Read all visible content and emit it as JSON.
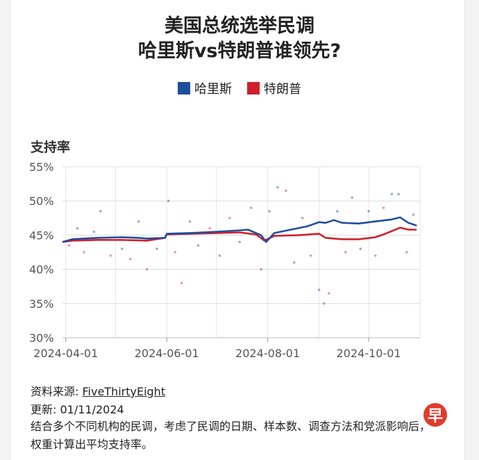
{
  "chart_data": {
    "type": "line",
    "title": "美国总统选举民调",
    "subtitle": "哈里斯vs特朗普谁领先?",
    "ylabel": "支持率",
    "xlabel": "",
    "ylim": [
      30,
      55
    ],
    "y_ticks": [
      "30%",
      "35%",
      "40%",
      "45%",
      "50%",
      "55%"
    ],
    "x_ticks": [
      "2024-04-01",
      "2024-06-01",
      "2024-08-01",
      "2024-10-01"
    ],
    "xlim": [
      "2024-03-30",
      "2024-11-01"
    ],
    "grid": true,
    "legend_position": "top-center",
    "series": [
      {
        "name": "哈里斯",
        "color": "#1f4e9c",
        "points": [
          [
            "2024-03-30",
            44.0
          ],
          [
            "2024-04-05",
            44.4
          ],
          [
            "2024-04-20",
            44.6
          ],
          [
            "2024-05-05",
            44.7
          ],
          [
            "2024-05-15",
            44.6
          ],
          [
            "2024-05-20",
            44.5
          ],
          [
            "2024-05-31",
            44.6
          ],
          [
            "2024-06-01",
            45.2
          ],
          [
            "2024-06-15",
            45.3
          ],
          [
            "2024-07-01",
            45.5
          ],
          [
            "2024-07-15",
            45.7
          ],
          [
            "2024-07-20",
            45.8
          ],
          [
            "2024-07-25",
            45.3
          ],
          [
            "2024-07-28",
            45.0
          ],
          [
            "2024-07-31",
            44.0
          ],
          [
            "2024-08-05",
            45.3
          ],
          [
            "2024-08-15",
            45.8
          ],
          [
            "2024-08-25",
            46.3
          ],
          [
            "2024-09-01",
            46.9
          ],
          [
            "2024-09-05",
            46.8
          ],
          [
            "2024-09-10",
            47.2
          ],
          [
            "2024-09-15",
            46.8
          ],
          [
            "2024-09-25",
            46.7
          ],
          [
            "2024-10-05",
            47.0
          ],
          [
            "2024-10-15",
            47.3
          ],
          [
            "2024-10-20",
            47.6
          ],
          [
            "2024-10-25",
            46.8
          ],
          [
            "2024-10-30",
            46.4
          ]
        ]
      },
      {
        "name": "特朗普",
        "color": "#d0202d",
        "points": [
          [
            "2024-03-30",
            44.0
          ],
          [
            "2024-04-05",
            44.2
          ],
          [
            "2024-04-20",
            44.3
          ],
          [
            "2024-05-05",
            44.3
          ],
          [
            "2024-05-20",
            44.2
          ],
          [
            "2024-05-31",
            44.6
          ],
          [
            "2024-06-01",
            45.1
          ],
          [
            "2024-06-15",
            45.2
          ],
          [
            "2024-07-01",
            45.3
          ],
          [
            "2024-07-15",
            45.4
          ],
          [
            "2024-07-25",
            45.1
          ],
          [
            "2024-07-30",
            44.2
          ],
          [
            "2024-08-05",
            44.9
          ],
          [
            "2024-08-20",
            45.0
          ],
          [
            "2024-09-01",
            45.2
          ],
          [
            "2024-09-05",
            44.6
          ],
          [
            "2024-09-15",
            44.4
          ],
          [
            "2024-09-25",
            44.4
          ],
          [
            "2024-10-05",
            44.7
          ],
          [
            "2024-10-10",
            45.1
          ],
          [
            "2024-10-15",
            45.6
          ],
          [
            "2024-10-20",
            46.1
          ],
          [
            "2024-10-25",
            45.8
          ],
          [
            "2024-10-30",
            45.8
          ]
        ]
      }
    ],
    "scatter_polls": [
      [
        "2024-04-03",
        43.5,
        "r"
      ],
      [
        "2024-04-08",
        46.0,
        "b"
      ],
      [
        "2024-04-12",
        42.5,
        "r"
      ],
      [
        "2024-04-18",
        45.5,
        "b"
      ],
      [
        "2024-04-22",
        48.5,
        "b"
      ],
      [
        "2024-04-28",
        42.0,
        "r"
      ],
      [
        "2024-05-05",
        43.0,
        "b"
      ],
      [
        "2024-05-10",
        41.5,
        "r"
      ],
      [
        "2024-05-15",
        47.0,
        "b"
      ],
      [
        "2024-05-20",
        40.0,
        "r"
      ],
      [
        "2024-05-26",
        43.0,
        "b"
      ],
      [
        "2024-06-02",
        50.0,
        "b"
      ],
      [
        "2024-06-06",
        42.5,
        "r"
      ],
      [
        "2024-06-10",
        38.0,
        "r"
      ],
      [
        "2024-06-15",
        47.0,
        "b"
      ],
      [
        "2024-06-20",
        43.5,
        "b"
      ],
      [
        "2024-06-27",
        46.0,
        "r"
      ],
      [
        "2024-07-03",
        42.0,
        "b"
      ],
      [
        "2024-07-09",
        47.5,
        "r"
      ],
      [
        "2024-07-15",
        44.0,
        "b"
      ],
      [
        "2024-07-22",
        49.0,
        "b"
      ],
      [
        "2024-07-28",
        40.0,
        "r"
      ],
      [
        "2024-08-02",
        48.5,
        "b"
      ],
      [
        "2024-08-07",
        52.0,
        "b"
      ],
      [
        "2024-08-12",
        51.5,
        "r"
      ],
      [
        "2024-08-17",
        41.0,
        "b"
      ],
      [
        "2024-08-22",
        47.5,
        "b"
      ],
      [
        "2024-08-27",
        42.0,
        "r"
      ],
      [
        "2024-09-01",
        37.0,
        "b"
      ],
      [
        "2024-09-04",
        35.0,
        "r"
      ],
      [
        "2024-09-07",
        36.5,
        "r"
      ],
      [
        "2024-09-12",
        48.5,
        "b"
      ],
      [
        "2024-09-17",
        42.5,
        "r"
      ],
      [
        "2024-09-21",
        50.5,
        "b"
      ],
      [
        "2024-09-26",
        43.0,
        "b"
      ],
      [
        "2024-10-01",
        48.5,
        "b"
      ],
      [
        "2024-10-05",
        42.0,
        "r"
      ],
      [
        "2024-10-10",
        49.0,
        "r"
      ],
      [
        "2024-10-15",
        51.0,
        "b"
      ],
      [
        "2024-10-19",
        51.0,
        "b"
      ],
      [
        "2024-10-24",
        42.5,
        "r"
      ],
      [
        "2024-10-28",
        48.0,
        "b"
      ]
    ]
  },
  "legend": [
    {
      "label": "哈里斯",
      "color": "#1f4e9c"
    },
    {
      "label": "特朗普",
      "color": "#d0202d"
    }
  ],
  "notes": {
    "source_prefix": "资料来源: ",
    "source_link": "FiveThirtyEight",
    "updated": "更新: 01/11/2024",
    "description": "结合多个不同机构的民调，考虑了民调的日期、样本数、调查方法和党派影响后，权重计算出平均支持率。"
  },
  "logo": {
    "text": "早",
    "color": "#e23a2f"
  }
}
